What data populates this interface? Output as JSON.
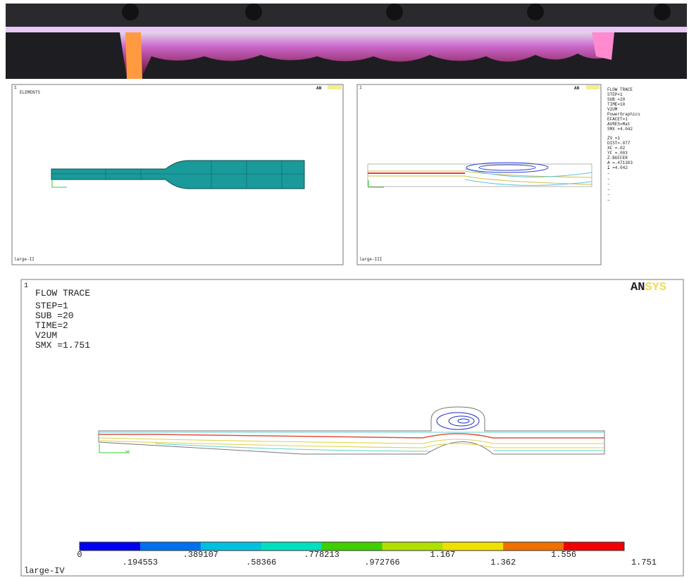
{
  "photo": {},
  "panels": [
    {
      "number": "1",
      "title": "ELEMENTS",
      "logo": "AN",
      "footer": "large-II"
    },
    {
      "number": "1",
      "logo": "AN",
      "footer": "large-III",
      "legend": [
        "FLOW TRACE",
        "STEP=1",
        "SUB =20",
        "TIME=10",
        "V2UM",
        "PowerGraphics",
        "EFACET=1",
        "AVRES=Mat",
        "SMX =4.042",
        "ZV =1",
        "DIST=.077",
        "XF =.02",
        "YF =.003",
        "Z-BUFFER",
        "A =.471303",
        "I =4.042"
      ]
    }
  ],
  "main_panel": {
    "number": "1",
    "logo": [
      "AN",
      "SYS"
    ],
    "info": [
      "FLOW TRACE",
      "STEP=1",
      "SUB =20",
      "TIME=2",
      "V2UM",
      "SMX =1.751"
    ],
    "color_scale": [
      "0",
      ".194553",
      ".389107",
      ".58366",
      ".778213",
      ".972766",
      "1.167",
      "1.362",
      "1.556",
      "1.751"
    ],
    "footer": "large-IV"
  }
}
